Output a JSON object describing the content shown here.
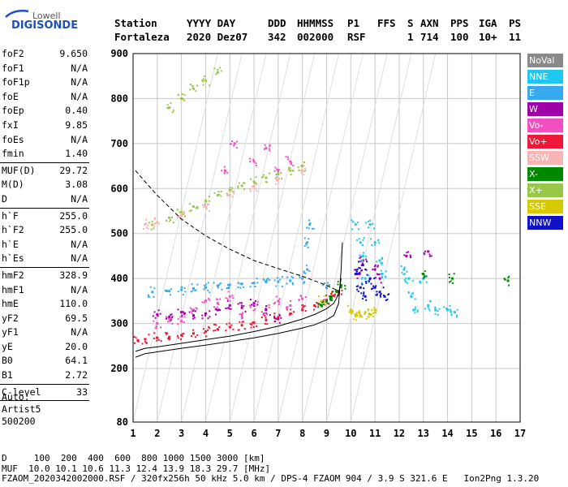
{
  "logo": {
    "top": "Lowell",
    "main": "DIGISONDE"
  },
  "header": {
    "station_label": "Station",
    "station_value": "Fortaleza",
    "yyyy_day_label": "YYYY DAY",
    "yyyy_day_value": "2020 Dez07",
    "ddd_label": "DDD",
    "ddd_value": "342",
    "hhmmss_label": "HHMMSS",
    "hhmmss_value": "002000",
    "p1_label": "P1",
    "p1_value": "RSF",
    "ffs_label": "FFS",
    "ffs_value": "",
    "s_label": "S",
    "s_value": "1",
    "axn_label": "AXN",
    "axn_value": "714",
    "pps_label": "PPS",
    "pps_value": "100",
    "iga_label": "IGA",
    "iga_value": "10+",
    "ps_label": "PS",
    "ps_value": "11"
  },
  "params": [
    {
      "k": "foF2",
      "v": "9.650"
    },
    {
      "k": "foF1",
      "v": "N/A"
    },
    {
      "k": "foF1p",
      "v": "N/A"
    },
    {
      "k": "foE",
      "v": "N/A"
    },
    {
      "k": "foEp",
      "v": "0.40"
    },
    {
      "k": "fxI",
      "v": "9.85"
    },
    {
      "k": "foEs",
      "v": "N/A"
    },
    {
      "k": "fmin",
      "v": "1.40"
    },
    {
      "sep": true
    },
    {
      "k": "MUF(D)",
      "v": "29.72"
    },
    {
      "k": "M(D)",
      "v": "3.08"
    },
    {
      "k": "D",
      "v": "N/A"
    },
    {
      "sep": true
    },
    {
      "k": "h`F",
      "v": "255.0"
    },
    {
      "k": "h`F2",
      "v": "255.0"
    },
    {
      "k": "h`E",
      "v": "N/A"
    },
    {
      "k": "h`Es",
      "v": "N/A"
    },
    {
      "sep": true
    },
    {
      "k": "hmF2",
      "v": "328.9"
    },
    {
      "k": "hmF1",
      "v": "N/A"
    },
    {
      "k": "hmE",
      "v": "110.0"
    },
    {
      "k": "yF2",
      "v": "69.5"
    },
    {
      "k": "yF1",
      "v": "N/A"
    },
    {
      "k": "yE",
      "v": "20.0"
    },
    {
      "k": "B0",
      "v": "64.1"
    },
    {
      "k": "B1",
      "v": "2.72"
    },
    {
      "sep": true
    },
    {
      "k": "C-level",
      "v": "33"
    },
    {
      "sep": true
    }
  ],
  "auto_block": {
    "line1": "Auto:",
    "line2": "Artist5",
    "line3": "500200"
  },
  "legend": [
    {
      "label": "NoVal",
      "color": "#8a8a8a"
    },
    {
      "label": "NNE",
      "color": "#1ec8f0"
    },
    {
      "label": "E",
      "color": "#38a8f0"
    },
    {
      "label": "W",
      "color": "#a000a8"
    },
    {
      "label": "Vo-",
      "color": "#f050c0"
    },
    {
      "label": "Vo+",
      "color": "#f01838"
    },
    {
      "label": "SSW",
      "color": "#f8b4b4"
    },
    {
      "label": "X-",
      "color": "#008800"
    },
    {
      "label": "X+",
      "color": "#98c848"
    },
    {
      "label": "SSE",
      "color": "#d8c800"
    },
    {
      "label": "NNW",
      "color": "#1010c8"
    }
  ],
  "chart_data": {
    "type": "scatter",
    "title": "",
    "xlabel": "",
    "ylabel": "",
    "x_ticks": [
      1,
      2,
      3,
      4,
      5,
      6,
      7,
      8,
      9,
      10,
      11,
      12,
      13,
      14,
      15,
      16,
      17
    ],
    "y_ticks": [
      80,
      200,
      300,
      400,
      500,
      600,
      700,
      800,
      900
    ],
    "xlim": [
      1,
      17
    ],
    "ylim": [
      80,
      900
    ],
    "grid": true,
    "legend_position": "right",
    "series": [
      {
        "color_key": "Vo+",
        "points": [
          [
            1.2,
            262
          ],
          [
            1.5,
            265
          ],
          [
            2.0,
            268
          ],
          [
            2.5,
            270
          ],
          [
            3.0,
            274
          ],
          [
            3.5,
            278
          ],
          [
            4.0,
            282
          ],
          [
            4.5,
            287
          ],
          [
            5.0,
            292
          ],
          [
            5.5,
            296
          ],
          [
            6.0,
            302
          ],
          [
            6.5,
            308
          ],
          [
            7.0,
            314
          ],
          [
            7.5,
            322
          ],
          [
            8.0,
            330
          ],
          [
            8.5,
            340
          ],
          [
            9.0,
            352
          ],
          [
            9.3,
            362
          ],
          [
            9.5,
            372
          ]
        ]
      },
      {
        "color_key": "Vo-",
        "points": [
          [
            2.0,
            300
          ],
          [
            2.5,
            310
          ],
          [
            3.0,
            305
          ],
          [
            3.5,
            330
          ],
          [
            4.0,
            350
          ],
          [
            4.5,
            345
          ],
          [
            5.0,
            360
          ],
          [
            5.5,
            320
          ],
          [
            6.0,
            340
          ],
          [
            6.5,
            330
          ],
          [
            7.0,
            350
          ],
          [
            7.5,
            340
          ],
          [
            8.0,
            355
          ],
          [
            4.8,
            640
          ],
          [
            5.2,
            700
          ],
          [
            6.0,
            660
          ],
          [
            6.5,
            690
          ],
          [
            7.0,
            640
          ],
          [
            7.5,
            660
          ]
        ]
      },
      {
        "color_key": "E",
        "points": [
          [
            1.8,
            370
          ],
          [
            2.5,
            372
          ],
          [
            3.0,
            375
          ],
          [
            3.5,
            378
          ],
          [
            4.0,
            380
          ],
          [
            4.5,
            384
          ],
          [
            5.0,
            386
          ],
          [
            5.5,
            388
          ],
          [
            6.0,
            390
          ],
          [
            6.5,
            392
          ],
          [
            7.0,
            393
          ],
          [
            7.5,
            395
          ],
          [
            8.0,
            400
          ],
          [
            8.2,
            420
          ],
          [
            8.2,
            480
          ],
          [
            8.3,
            520
          ],
          [
            9.0,
            380
          ]
        ]
      },
      {
        "color_key": "W",
        "points": [
          [
            2.0,
            320
          ],
          [
            2.5,
            315
          ],
          [
            3.0,
            325
          ],
          [
            3.5,
            318
          ],
          [
            4.0,
            322
          ],
          [
            4.5,
            330
          ],
          [
            5.0,
            340
          ],
          [
            5.5,
            335
          ],
          [
            6.0,
            345
          ],
          [
            6.5,
            330
          ],
          [
            7.0,
            310
          ],
          [
            10.3,
            410
          ],
          [
            10.5,
            440
          ],
          [
            11.0,
            420
          ],
          [
            11.2,
            400
          ],
          [
            13.2,
            460
          ],
          [
            12.3,
            450
          ]
        ]
      },
      {
        "color_key": "NNE",
        "points": [
          [
            10.2,
            520
          ],
          [
            10.4,
            480
          ],
          [
            10.5,
            450
          ],
          [
            10.6,
            400
          ],
          [
            10.8,
            520
          ],
          [
            11.0,
            480
          ],
          [
            11.2,
            440
          ],
          [
            11.3,
            410
          ],
          [
            12.2,
            420
          ],
          [
            12.4,
            400
          ],
          [
            12.5,
            360
          ],
          [
            12.6,
            330
          ],
          [
            13.0,
            400
          ],
          [
            13.2,
            340
          ],
          [
            13.5,
            330
          ],
          [
            14.0,
            330
          ],
          [
            14.3,
            325
          ]
        ]
      },
      {
        "color_key": "NNW",
        "points": [
          [
            10.2,
            410
          ],
          [
            10.4,
            380
          ],
          [
            10.6,
            360
          ],
          [
            10.8,
            400
          ],
          [
            11.0,
            380
          ],
          [
            11.2,
            370
          ],
          [
            11.4,
            360
          ],
          [
            10.5,
            430
          ]
        ]
      },
      {
        "color_key": "SSE",
        "points": [
          [
            10.0,
            330
          ],
          [
            10.2,
            320
          ],
          [
            10.4,
            318
          ],
          [
            10.6,
            325
          ],
          [
            10.8,
            320
          ],
          [
            11.0,
            330
          ],
          [
            8.8,
            350
          ]
        ]
      },
      {
        "color_key": "X-",
        "points": [
          [
            8.8,
            340
          ],
          [
            9.0,
            350
          ],
          [
            9.2,
            360
          ],
          [
            9.4,
            372
          ],
          [
            9.6,
            385
          ],
          [
            13.0,
            410
          ],
          [
            14.2,
            400
          ],
          [
            16.5,
            395
          ]
        ]
      },
      {
        "color_key": "X+",
        "points": [
          [
            1.8,
            520
          ],
          [
            2.5,
            535
          ],
          [
            3.0,
            548
          ],
          [
            3.5,
            560
          ],
          [
            4.0,
            572
          ],
          [
            4.5,
            585
          ],
          [
            5.0,
            596
          ],
          [
            5.5,
            606
          ],
          [
            6.0,
            615
          ],
          [
            6.5,
            624
          ],
          [
            7.0,
            632
          ],
          [
            7.5,
            640
          ],
          [
            8.0,
            650
          ],
          [
            2.5,
            780
          ],
          [
            3.0,
            800
          ],
          [
            3.5,
            822
          ],
          [
            4.0,
            840
          ],
          [
            4.5,
            858
          ]
        ]
      },
      {
        "color_key": "SSW",
        "points": [
          [
            1.5,
            520
          ],
          [
            2.0,
            525
          ],
          [
            3.0,
            540
          ],
          [
            4.0,
            560
          ],
          [
            5.0,
            585
          ],
          [
            6.0,
            605
          ],
          [
            7.0,
            620
          ],
          [
            8.0,
            640
          ]
        ]
      }
    ],
    "curves": [
      {
        "style": "solid",
        "points": [
          [
            1.1,
            225
          ],
          [
            1.5,
            233
          ],
          [
            2,
            237
          ],
          [
            3,
            245
          ],
          [
            4,
            252
          ],
          [
            5,
            260
          ],
          [
            6,
            268
          ],
          [
            7,
            278
          ],
          [
            8,
            290
          ],
          [
            8.5,
            297
          ],
          [
            9,
            308
          ],
          [
            9.3,
            318
          ],
          [
            9.5,
            345
          ],
          [
            9.6,
            420
          ],
          [
            9.65,
            480
          ]
        ]
      },
      {
        "style": "solid",
        "points": [
          [
            1.1,
            238
          ],
          [
            1.5,
            245
          ],
          [
            2,
            248
          ],
          [
            3,
            256
          ],
          [
            4,
            264
          ],
          [
            5,
            272
          ],
          [
            6,
            282
          ],
          [
            7,
            294
          ],
          [
            8,
            310
          ],
          [
            8.5,
            320
          ],
          [
            9,
            333
          ],
          [
            9.3,
            345
          ],
          [
            9.5,
            365
          ],
          [
            9.6,
            400
          ]
        ]
      },
      {
        "style": "dashed",
        "points": [
          [
            1.1,
            640
          ],
          [
            1.5,
            615
          ],
          [
            2,
            585
          ],
          [
            3,
            532
          ],
          [
            4,
            495
          ],
          [
            5,
            465
          ],
          [
            6,
            440
          ],
          [
            7,
            422
          ],
          [
            8,
            405
          ],
          [
            9,
            385
          ],
          [
            9.5,
            372
          ]
        ]
      }
    ]
  },
  "footer": {
    "line1": "D     100  200  400  600  800 1000 1500 3000 [km]",
    "line2": "MUF  10.0 10.1 10.6 11.3 12.4 13.9 18.3 29.7 [MHz]",
    "line3": "FZAOM_2020342002000.RSF / 320fx256h 50 kHz 5.0 km / DPS-4 FZAOM 904 / 3.9 S 321.6 E   Ion2Png 1.3.20"
  }
}
